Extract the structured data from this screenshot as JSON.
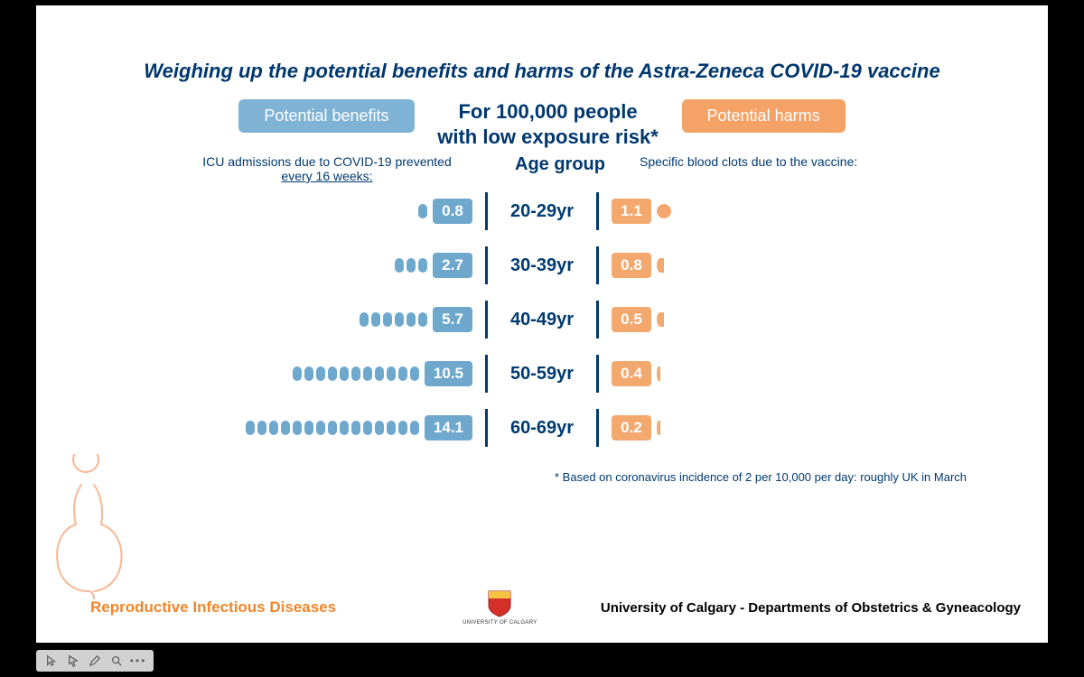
{
  "title": "Weighing up the potential benefits and harms of the Astra-Zeneca COVID-19 vaccine",
  "center_heading_line1": "For 100,000 people",
  "center_heading_line2": "with low exposure risk*",
  "benefits_label": "Potential benefits",
  "harms_label": "Potential harms",
  "benefits_sub_line1": "ICU admissions due to COVID-19 prevented",
  "benefits_sub_line2": "every 16 weeks:",
  "age_heading": "Age group",
  "harms_sub": "Specific blood clots due to the vaccine:",
  "footnote": "* Based on coronavirus incidence of 2 per 10,000 per day: roughly UK in March",
  "colors": {
    "navy": "#00376e",
    "benefit_fill": "#6fa8cd",
    "benefit_pill": "#7fb3d5",
    "harm_fill": "#f3a86e",
    "harm_pill": "#f5a266",
    "background": "#ffffff",
    "page_bg": "#000000",
    "brand_orange": "#f0862c"
  },
  "typography": {
    "title_fontsize": 22,
    "heading_fontsize": 22,
    "age_fontsize": 20,
    "value_fontsize": 17,
    "sub_fontsize": 14,
    "footnote_fontsize": 13
  },
  "chart": {
    "type": "infographic-diverging-bar",
    "unit_icon_benefit": "oval",
    "unit_icon_harm": "circle",
    "rows": [
      {
        "age": "20-29yr",
        "benefit": 0.8,
        "benefit_dots": 1,
        "harm": 1.1,
        "harm_icon": "full"
      },
      {
        "age": "30-39yr",
        "benefit": 2.7,
        "benefit_dots": 3,
        "harm": 0.8,
        "harm_icon": "half"
      },
      {
        "age": "40-49yr",
        "benefit": 5.7,
        "benefit_dots": 6,
        "harm": 0.5,
        "harm_icon": "half"
      },
      {
        "age": "50-59yr",
        "benefit": 10.5,
        "benefit_dots": 11,
        "harm": 0.4,
        "harm_icon": "sliver"
      },
      {
        "age": "60-69yr",
        "benefit": 14.1,
        "benefit_dots": 15,
        "harm": 0.2,
        "harm_icon": "sliver"
      }
    ]
  },
  "footer": {
    "left": "Reproductive Infectious Diseases",
    "uni_small": "UNIVERSITY OF CALGARY",
    "right": "University of Calgary - Departments of Obstetrics & Gyneacology"
  },
  "toolbar": {
    "items": [
      "cursor-icon",
      "pointer-icon",
      "pen-icon",
      "zoom-icon",
      "more-icon"
    ]
  }
}
